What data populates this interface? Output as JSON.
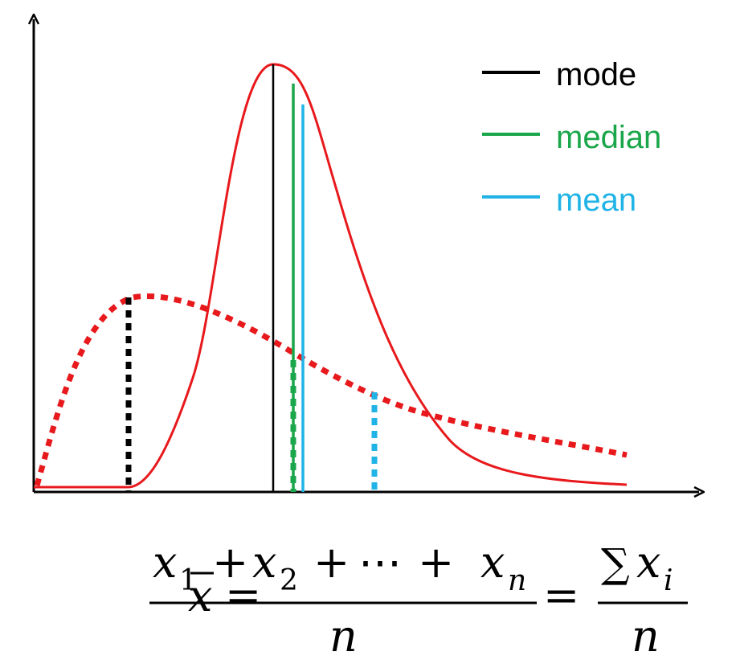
{
  "legend": {
    "items": [
      {
        "label": "mode",
        "color": "#000000"
      },
      {
        "label": "median",
        "color": "#1aa64a"
      },
      {
        "label": "mean",
        "color": "#1fb3e6"
      }
    ]
  },
  "colors": {
    "curve": "#e8191c",
    "axis": "#000000"
  },
  "formula": {
    "lhs_var": "x",
    "equals": "=",
    "numerator": {
      "x1": "x",
      "sub1": "1",
      "plus1": "+",
      "x2": "x",
      "sub2": "2",
      "plus2": "+",
      "dots": "⋯",
      "plus3": "+",
      "xn": "x",
      "subn": "n"
    },
    "denominator": "n",
    "sum_symbol": "∑",
    "sum_var": "x",
    "sum_sub": "i",
    "sum_denominator": "n"
  }
}
